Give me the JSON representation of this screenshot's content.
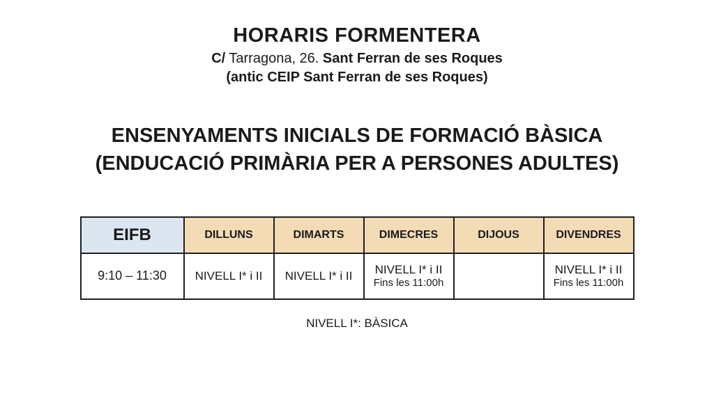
{
  "page": {
    "title": "HORARIS FORMENTERA",
    "address_prefix": "C/",
    "address_regular": " Tarragona, 26. ",
    "address_bold": "Sant Ferran de ses Roques",
    "address_line2": "(antic CEIP Sant Ferran de ses Roques)",
    "heading_line1": "ENSENYAMENTS INICIALS DE FORMACIÓ BÀSICA",
    "heading_line2": "(ENDUCACIÓ PRIMÀRIA PER A PERSONES ADULTES)",
    "footnote": "NIVELL I*: BÀSICA"
  },
  "colors": {
    "corner_header_bg": "#dce6f1",
    "day_header_bg": "#f3dbb6",
    "border": "#1f1f1f"
  },
  "chart_data": {
    "type": "table",
    "title": "EIFB schedule",
    "columns": [
      "EIFB",
      "DILLUNS",
      "DIMARTS",
      "DIMECRES",
      "DIJOUS",
      "DIVENDRES"
    ],
    "rows": [
      [
        "9:10 – 11:30",
        "NIVELL I* i II",
        "NIVELL I* i II",
        "NIVELL I* i II Fins les 11:00h",
        "",
        "NIVELL I* i II Fins les 11:00h"
      ]
    ]
  },
  "table": {
    "header": {
      "corner": "EIFB",
      "days": [
        "DILLUNS",
        "DIMARTS",
        "DIMECRES",
        "DIJOUS",
        "DIVENDRES"
      ]
    },
    "rows": [
      {
        "time": "9:10 – 11:30",
        "cells": [
          {
            "line1": "NIVELL I* i II",
            "line2": ""
          },
          {
            "line1": "NIVELL I* i II",
            "line2": ""
          },
          {
            "line1": "NIVELL I* i II",
            "line2": "Fins les 11:00h"
          },
          {
            "line1": "",
            "line2": ""
          },
          {
            "line1": "NIVELL I* i II",
            "line2": "Fins les 11:00h"
          }
        ]
      }
    ]
  }
}
